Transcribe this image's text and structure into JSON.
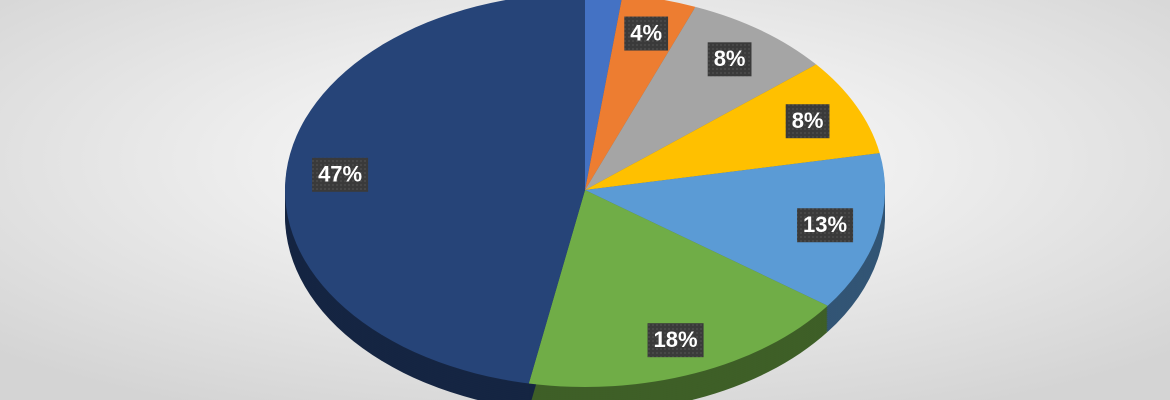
{
  "chart_data": {
    "type": "pie",
    "values": [
      2,
      4,
      8,
      8,
      13,
      18,
      47
    ],
    "value_labels": [
      null,
      "4%",
      "8%",
      "8%",
      "13%",
      "18%",
      "47%"
    ],
    "colors": [
      "#4472c4",
      "#ed7d31",
      "#a5a5a5",
      "#ffc000",
      "#5b9bd5",
      "#70ad47",
      "#264478"
    ]
  }
}
